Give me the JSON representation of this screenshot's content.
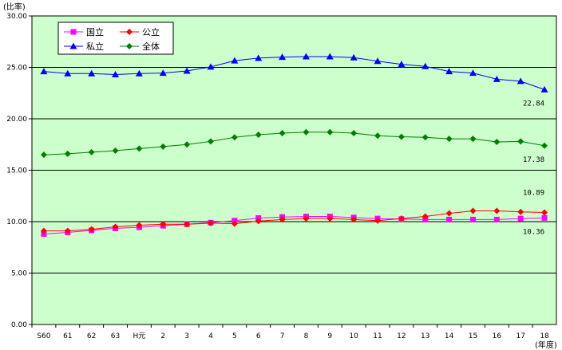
{
  "chart_data": {
    "type": "line",
    "ylabel": "(比率)",
    "xlabel": "(年度)",
    "ylim": [
      0,
      30
    ],
    "yticks": [
      "0.00",
      "5.00",
      "10.00",
      "15.00",
      "20.00",
      "25.00",
      "30.00"
    ],
    "categories": [
      "S60",
      "61",
      "62",
      "63",
      "H元",
      "2",
      "3",
      "4",
      "5",
      "6",
      "7",
      "8",
      "9",
      "10",
      "11",
      "12",
      "13",
      "14",
      "15",
      "16",
      "17",
      "18"
    ],
    "grid": true,
    "legend_position": "top-left",
    "background": "#ccffcc",
    "series": [
      {
        "name": "国立",
        "color": "#ff00ff",
        "marker": "square",
        "values": [
          8.8,
          8.95,
          9.15,
          9.35,
          9.45,
          9.6,
          9.75,
          9.9,
          10.1,
          10.35,
          10.45,
          10.5,
          10.5,
          10.4,
          10.3,
          10.25,
          10.2,
          10.2,
          10.2,
          10.2,
          10.3,
          10.36
        ]
      },
      {
        "name": "公立",
        "color": "#ff0000",
        "marker": "diamond",
        "values": [
          9.1,
          9.1,
          9.25,
          9.5,
          9.65,
          9.75,
          9.75,
          9.85,
          9.8,
          10.05,
          10.2,
          10.3,
          10.3,
          10.2,
          10.1,
          10.3,
          10.5,
          10.8,
          11.05,
          11.05,
          10.95,
          10.89
        ]
      },
      {
        "name": "私立",
        "color": "#0000ff",
        "marker": "triangle",
        "values": [
          24.6,
          24.4,
          24.4,
          24.3,
          24.4,
          24.45,
          24.65,
          25.05,
          25.65,
          25.9,
          26.0,
          26.05,
          26.05,
          25.95,
          25.6,
          25.3,
          25.1,
          24.6,
          24.45,
          23.85,
          23.65,
          22.84
        ]
      },
      {
        "name": "全体",
        "color": "#008000",
        "marker": "diamond",
        "values": [
          16.5,
          16.6,
          16.75,
          16.9,
          17.1,
          17.3,
          17.5,
          17.8,
          18.2,
          18.45,
          18.6,
          18.7,
          18.7,
          18.6,
          18.35,
          18.25,
          18.2,
          18.05,
          18.05,
          17.75,
          17.8,
          17.38
        ]
      }
    ],
    "data_labels": [
      {
        "series": "私立",
        "text": "22.84"
      },
      {
        "series": "全体",
        "text": "17.38"
      },
      {
        "series": "公立",
        "text": "10.89"
      },
      {
        "series": "国立",
        "text": "10.36"
      }
    ]
  }
}
